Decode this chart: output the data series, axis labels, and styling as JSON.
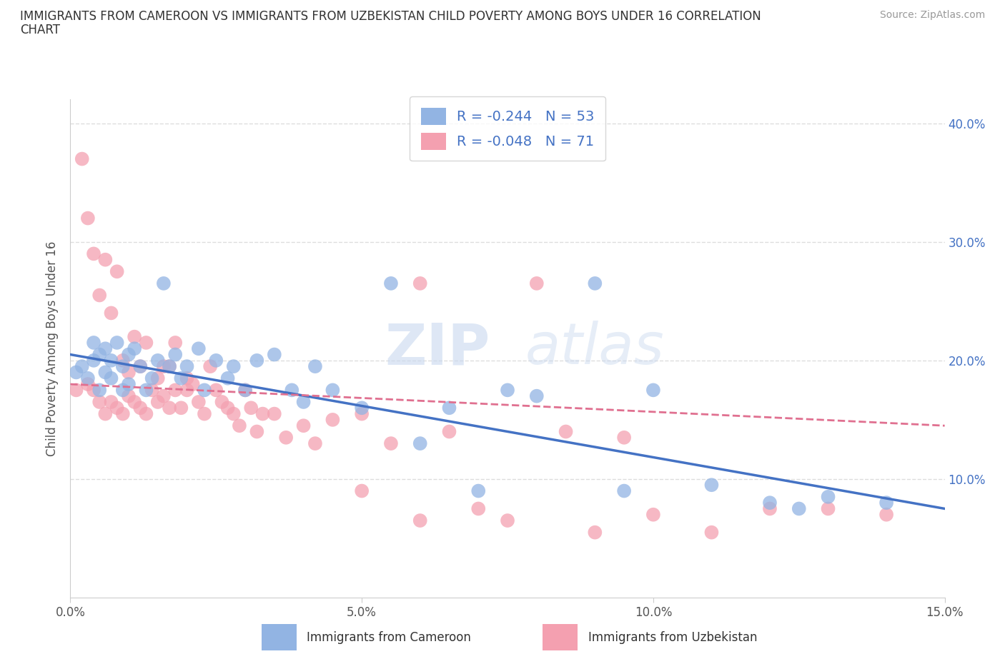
{
  "title_line1": "IMMIGRANTS FROM CAMEROON VS IMMIGRANTS FROM UZBEKISTAN CHILD POVERTY AMONG BOYS UNDER 16 CORRELATION",
  "title_line2": "CHART",
  "source_text": "Source: ZipAtlas.com",
  "ylabel": "Child Poverty Among Boys Under 16",
  "xlim": [
    0.0,
    0.15
  ],
  "ylim": [
    0.0,
    0.42
  ],
  "xticks": [
    0.0,
    0.05,
    0.1,
    0.15
  ],
  "xticklabels": [
    "0.0%",
    "5.0%",
    "10.0%",
    "15.0%"
  ],
  "yticks": [
    0.0,
    0.1,
    0.2,
    0.3,
    0.4
  ],
  "right_yticklabels": [
    "",
    "10.0%",
    "20.0%",
    "30.0%",
    "40.0%"
  ],
  "cameroon_color": "#92b4e3",
  "uzbekistan_color": "#f4a0b0",
  "cameroon_line_color": "#4472c4",
  "uzbekistan_line_color": "#e07090",
  "watermark_part1": "ZIP",
  "watermark_part2": "atlas",
  "R_cameroon": -0.244,
  "N_cameroon": 53,
  "R_uzbekistan": -0.048,
  "N_uzbekistan": 71,
  "cameroon_x": [
    0.001,
    0.002,
    0.003,
    0.004,
    0.004,
    0.005,
    0.005,
    0.006,
    0.006,
    0.007,
    0.007,
    0.008,
    0.009,
    0.009,
    0.01,
    0.01,
    0.011,
    0.012,
    0.013,
    0.014,
    0.015,
    0.016,
    0.017,
    0.018,
    0.019,
    0.02,
    0.022,
    0.023,
    0.025,
    0.027,
    0.028,
    0.03,
    0.032,
    0.035,
    0.038,
    0.04,
    0.042,
    0.045,
    0.05,
    0.055,
    0.06,
    0.065,
    0.07,
    0.075,
    0.08,
    0.09,
    0.095,
    0.1,
    0.11,
    0.12,
    0.125,
    0.13,
    0.14
  ],
  "cameroon_y": [
    0.19,
    0.195,
    0.185,
    0.2,
    0.215,
    0.175,
    0.205,
    0.19,
    0.21,
    0.185,
    0.2,
    0.215,
    0.175,
    0.195,
    0.205,
    0.18,
    0.21,
    0.195,
    0.175,
    0.185,
    0.2,
    0.265,
    0.195,
    0.205,
    0.185,
    0.195,
    0.21,
    0.175,
    0.2,
    0.185,
    0.195,
    0.175,
    0.2,
    0.205,
    0.175,
    0.165,
    0.195,
    0.175,
    0.16,
    0.265,
    0.13,
    0.16,
    0.09,
    0.175,
    0.17,
    0.265,
    0.09,
    0.175,
    0.095,
    0.08,
    0.075,
    0.085,
    0.08
  ],
  "uzbekistan_x": [
    0.001,
    0.002,
    0.003,
    0.003,
    0.004,
    0.004,
    0.005,
    0.005,
    0.006,
    0.006,
    0.007,
    0.007,
    0.008,
    0.008,
    0.009,
    0.009,
    0.01,
    0.01,
    0.011,
    0.011,
    0.012,
    0.012,
    0.013,
    0.013,
    0.014,
    0.015,
    0.015,
    0.016,
    0.016,
    0.017,
    0.017,
    0.018,
    0.018,
    0.019,
    0.02,
    0.02,
    0.021,
    0.022,
    0.023,
    0.024,
    0.025,
    0.026,
    0.027,
    0.028,
    0.029,
    0.03,
    0.031,
    0.032,
    0.033,
    0.035,
    0.037,
    0.04,
    0.042,
    0.045,
    0.05,
    0.055,
    0.06,
    0.065,
    0.07,
    0.075,
    0.08,
    0.085,
    0.09,
    0.095,
    0.1,
    0.11,
    0.12,
    0.13,
    0.14,
    0.05,
    0.06
  ],
  "uzbekistan_y": [
    0.175,
    0.37,
    0.18,
    0.32,
    0.175,
    0.29,
    0.165,
    0.255,
    0.155,
    0.285,
    0.165,
    0.24,
    0.16,
    0.275,
    0.155,
    0.2,
    0.17,
    0.19,
    0.165,
    0.22,
    0.16,
    0.195,
    0.155,
    0.215,
    0.175,
    0.185,
    0.165,
    0.195,
    0.17,
    0.195,
    0.16,
    0.175,
    0.215,
    0.16,
    0.175,
    0.185,
    0.18,
    0.165,
    0.155,
    0.195,
    0.175,
    0.165,
    0.16,
    0.155,
    0.145,
    0.175,
    0.16,
    0.14,
    0.155,
    0.155,
    0.135,
    0.145,
    0.13,
    0.15,
    0.155,
    0.13,
    0.065,
    0.14,
    0.075,
    0.065,
    0.265,
    0.14,
    0.055,
    0.135,
    0.07,
    0.055,
    0.075,
    0.075,
    0.07,
    0.09,
    0.265
  ],
  "grid_color": "#dddddd",
  "background_color": "#ffffff",
  "legend_bottom_label1": "Immigrants from Cameroon",
  "legend_bottom_label2": "Immigrants from Uzbekistan"
}
